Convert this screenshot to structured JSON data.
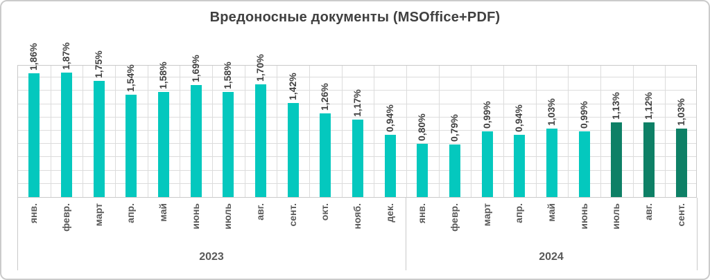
{
  "chart_data": {
    "type": "bar",
    "title": "Вредоносные документы (MSOffice+PDF)",
    "ylabel": "",
    "xlabel": "",
    "unit": "%",
    "ylim": [
      0,
      2.0
    ],
    "grid_step": 0.2,
    "grid": true,
    "legend": false,
    "value_label_rotation_deg": 90,
    "category_label_rotation_deg": 90,
    "groups": [
      {
        "year": "2023",
        "months": [
          "янв.",
          "февр.",
          "март",
          "апр.",
          "май",
          "июнь",
          "июль",
          "авг.",
          "сент.",
          "окт.",
          "нояб.",
          "дек."
        ],
        "values": [
          1.86,
          1.87,
          1.75,
          1.54,
          1.58,
          1.69,
          1.58,
          1.7,
          1.42,
          1.26,
          1.17,
          0.94
        ],
        "labels": [
          "1,86%",
          "1,87%",
          "1,75%",
          "1,54%",
          "1,58%",
          "1,69%",
          "1,58%",
          "1,70%",
          "1,42%",
          "1,26%",
          "1,17%",
          "0,94%"
        ],
        "highlight_from_index": null
      },
      {
        "year": "2024",
        "months": [
          "янв.",
          "февр.",
          "март",
          "апр.",
          "май",
          "июнь",
          "июль",
          "авг.",
          "сент."
        ],
        "values": [
          0.8,
          0.79,
          0.99,
          0.94,
          1.03,
          0.99,
          1.13,
          1.12,
          1.03
        ],
        "labels": [
          "0,80%",
          "0,79%",
          "0,99%",
          "0,94%",
          "1,03%",
          "0,99%",
          "1,13%",
          "1,12%",
          "1,03%"
        ],
        "highlight_from_index": 6
      }
    ],
    "colors": {
      "bar": "#04c8be",
      "bar_highlight": "#0e8066",
      "grid": "#dcdcdc",
      "axis_line": "#c9c9c9",
      "title_text": "#404040",
      "data_label_text": "#404040",
      "axis_label_text": "#595959"
    }
  }
}
